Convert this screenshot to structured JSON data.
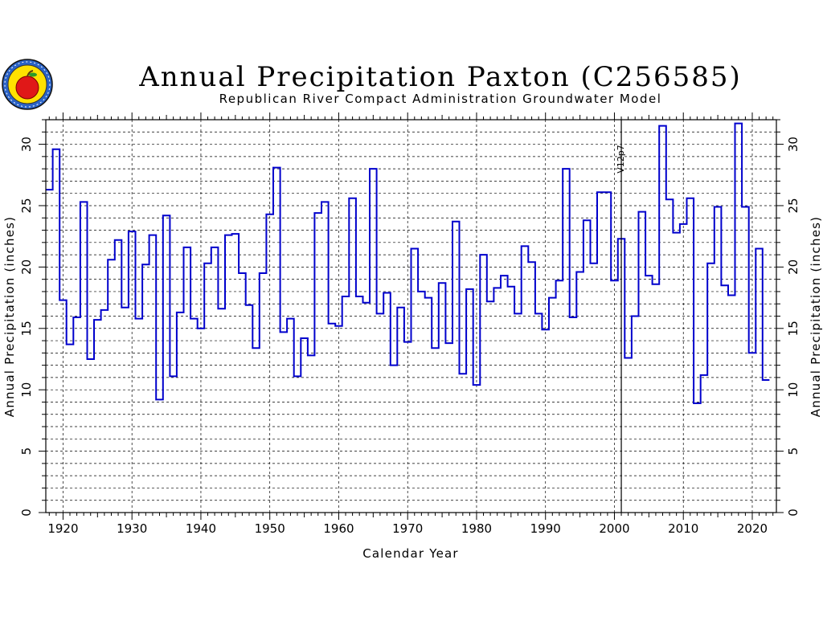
{
  "chart_data": {
    "type": "line",
    "step": true,
    "title": "Annual Precipitation Paxton (C256585)",
    "subtitle": "Republican River Compact Administration Groundwater Model",
    "xlabel": "Calendar Year",
    "ylabel_left": "Annual Precipitation (inches)",
    "ylabel_right": "Annual Precipitation (inches)",
    "xlim": [
      1917.5,
      2023.5
    ],
    "ylim": [
      0,
      32
    ],
    "x_ticks": [
      1920,
      1930,
      1940,
      1950,
      1960,
      1970,
      1980,
      1990,
      2000,
      2010,
      2020
    ],
    "y_ticks": [
      0,
      5,
      10,
      15,
      20,
      25,
      30
    ],
    "grid": true,
    "line_color": "#0000cc",
    "marker": {
      "x": 2001,
      "label": "V12p7"
    },
    "series": [
      {
        "x": [
          1918,
          1919,
          1920,
          1921,
          1922,
          1923,
          1924,
          1925,
          1926,
          1927,
          1928,
          1929,
          1930,
          1931,
          1932,
          1933,
          1934,
          1935,
          1936,
          1937,
          1938,
          1939,
          1940,
          1941,
          1942,
          1943,
          1944,
          1945,
          1946,
          1947,
          1948,
          1949,
          1950,
          1951,
          1952,
          1953,
          1954,
          1955,
          1956,
          1957,
          1958,
          1959,
          1960,
          1961,
          1962,
          1963,
          1964,
          1965,
          1966,
          1967,
          1968,
          1969,
          1970,
          1971,
          1972,
          1973,
          1974,
          1975,
          1976,
          1977,
          1978,
          1979,
          1980,
          1981,
          1982,
          1983,
          1984,
          1985,
          1986,
          1987,
          1988,
          1989,
          1990,
          1991,
          1992,
          1993,
          1994,
          1995,
          1996,
          1997,
          1998,
          1999,
          2000,
          2001,
          2002,
          2003,
          2004,
          2005,
          2006,
          2007,
          2008,
          2009,
          2010,
          2011,
          2012,
          2013,
          2014,
          2015,
          2016,
          2017,
          2018,
          2019,
          2020,
          2021,
          2022
        ],
        "values": [
          26.3,
          29.6,
          17.3,
          13.7,
          15.9,
          25.3,
          12.5,
          15.7,
          16.5,
          20.6,
          22.2,
          16.7,
          22.9,
          15.8,
          20.2,
          22.6,
          9.2,
          24.2,
          11.1,
          16.3,
          21.6,
          15.8,
          15.0,
          20.3,
          21.6,
          16.6,
          22.6,
          22.7,
          19.5,
          16.9,
          13.4,
          19.5,
          24.3,
          28.1,
          14.7,
          15.8,
          11.1,
          14.2,
          12.8,
          24.4,
          25.3,
          15.4,
          15.2,
          17.6,
          25.6,
          17.6,
          17.1,
          28.0,
          16.2,
          17.9,
          12.0,
          16.7,
          13.9,
          21.5,
          18.0,
          17.5,
          13.4,
          18.7,
          13.8,
          23.7,
          11.3,
          18.2,
          10.4,
          21.0,
          17.2,
          18.3,
          19.3,
          18.4,
          16.2,
          21.7,
          20.4,
          16.2,
          14.9,
          17.5,
          18.9,
          28.0,
          15.9,
          19.6,
          23.8,
          20.3,
          26.1,
          26.1,
          18.9,
          22.3,
          12.6,
          16.0,
          24.5,
          19.3,
          18.6,
          31.5,
          25.5,
          22.8,
          23.5,
          25.6,
          8.9,
          11.2,
          20.3,
          24.9,
          18.5,
          17.7,
          31.7,
          24.9,
          13.0,
          21.5,
          10.8
        ]
      }
    ]
  }
}
